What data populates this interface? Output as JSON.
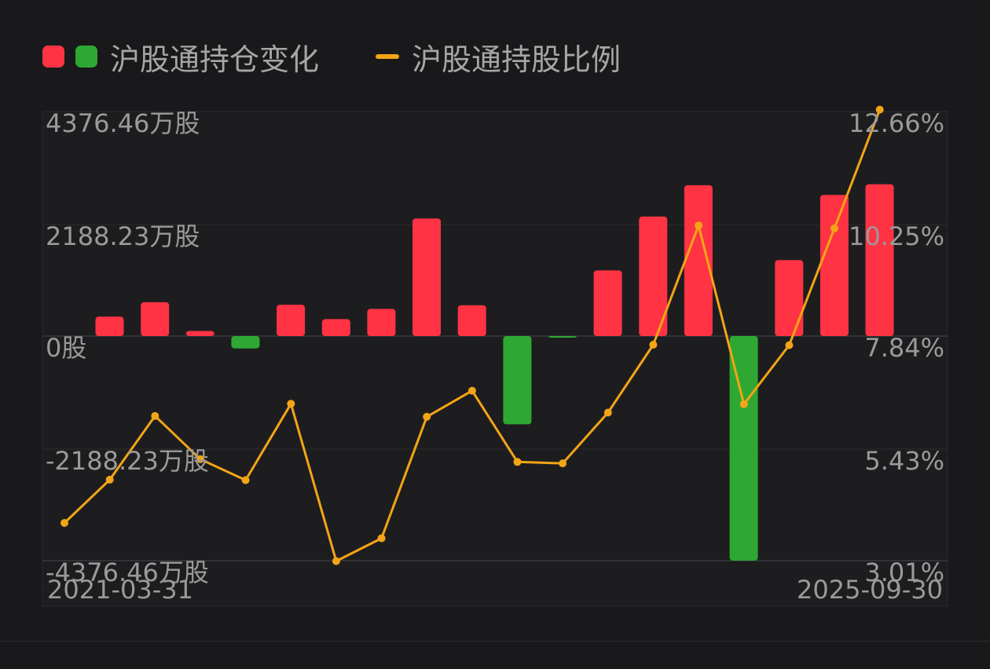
{
  "legend": {
    "bar_label": "沪股通持仓变化",
    "line_label": "沪股通持股比例"
  },
  "colors": {
    "background": "#19191b",
    "up": "#ff3344",
    "down": "#2ea832",
    "line": "#f2a516",
    "text": "#9a9a9a"
  },
  "chart_data": {
    "type": "bar+line",
    "left_axis": {
      "ticks": [
        "4376.46万股",
        "2188.23万股",
        "0股",
        "-2188.23万股",
        "-4376.46万股"
      ],
      "tick_values": [
        4376.46,
        2188.23,
        0,
        -2188.23,
        -4376.46
      ],
      "range": [
        -4376.46,
        4376.46
      ]
    },
    "right_axis": {
      "ticks": [
        "12.66%",
        "10.25%",
        "7.84%",
        "5.43%",
        "3.01%"
      ],
      "tick_values": [
        12.66,
        10.25,
        7.84,
        5.43,
        3.01
      ],
      "range": [
        3.01,
        12.66
      ]
    },
    "x_labels": {
      "start": "2021-03-31",
      "end": "2025-09-30"
    },
    "series": [
      {
        "name": "沪股通持仓变化",
        "type": "bar",
        "values": [
          380,
          660,
          100,
          -240,
          610,
          330,
          530,
          2290,
          600,
          -1720,
          -30,
          1280,
          2330,
          2940,
          -4376,
          1480,
          2750,
          2960
        ]
      },
      {
        "name": "沪股通持股比例",
        "type": "line",
        "values": [
          3.82,
          4.75,
          6.12,
          5.19,
          4.74,
          6.38,
          3.0,
          3.49,
          6.1,
          6.66,
          5.13,
          5.1,
          6.19,
          7.65,
          10.21,
          6.37,
          7.64,
          10.15,
          12.7
        ]
      }
    ]
  }
}
